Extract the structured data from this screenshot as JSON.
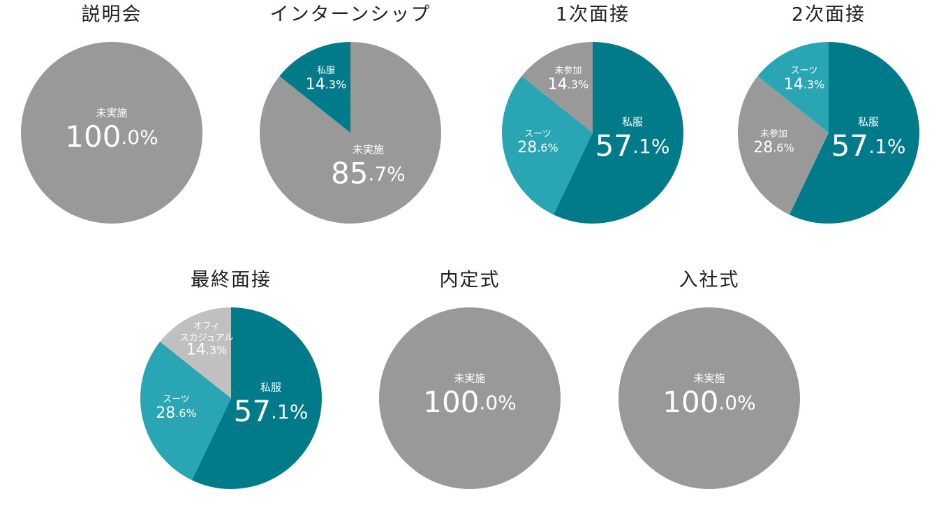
{
  "chart_data": [
    {
      "type": "pie",
      "title": "説明会",
      "categories": [
        "未実施"
      ],
      "values": [
        100.0
      ],
      "value_labels": [
        "100.0%"
      ],
      "colors": [
        "#999999"
      ]
    },
    {
      "type": "pie",
      "title": "インターンシップ",
      "categories": [
        "未実施",
        "私服"
      ],
      "values": [
        85.7,
        14.3
      ],
      "value_labels": [
        "85.7%",
        "14.3%"
      ],
      "colors": [
        "#999999",
        "#017b8a"
      ]
    },
    {
      "type": "pie",
      "title": "1次面接",
      "categories": [
        "私服",
        "スーツ",
        "未参加"
      ],
      "values": [
        57.1,
        28.6,
        14.3
      ],
      "value_labels": [
        "57.1%",
        "28.6%",
        "14.3%"
      ],
      "colors": [
        "#017b8a",
        "#29a5b3",
        "#999999"
      ]
    },
    {
      "type": "pie",
      "title": "2次面接",
      "categories": [
        "私服",
        "未参加",
        "スーツ"
      ],
      "values": [
        57.1,
        28.6,
        14.3
      ],
      "value_labels": [
        "57.1%",
        "28.6%",
        "14.3%"
      ],
      "colors": [
        "#017b8a",
        "#999999",
        "#29a5b3"
      ]
    },
    {
      "type": "pie",
      "title": "最終面接",
      "categories": [
        "私服",
        "スーツ",
        "オフィスカジュアル"
      ],
      "values": [
        57.1,
        28.6,
        14.3
      ],
      "value_labels": [
        "57.1%",
        "28.6%",
        "14.3%"
      ],
      "colors": [
        "#017b8a",
        "#29a5b3",
        "#c0c0c0"
      ]
    },
    {
      "type": "pie",
      "title": "内定式",
      "categories": [
        "未実施"
      ],
      "values": [
        100.0
      ],
      "value_labels": [
        "100.0%"
      ],
      "colors": [
        "#999999"
      ]
    },
    {
      "type": "pie",
      "title": "入社式",
      "categories": [
        "未実施"
      ],
      "values": [
        100.0
      ],
      "value_labels": [
        "100.0%"
      ],
      "colors": [
        "#999999"
      ]
    }
  ]
}
